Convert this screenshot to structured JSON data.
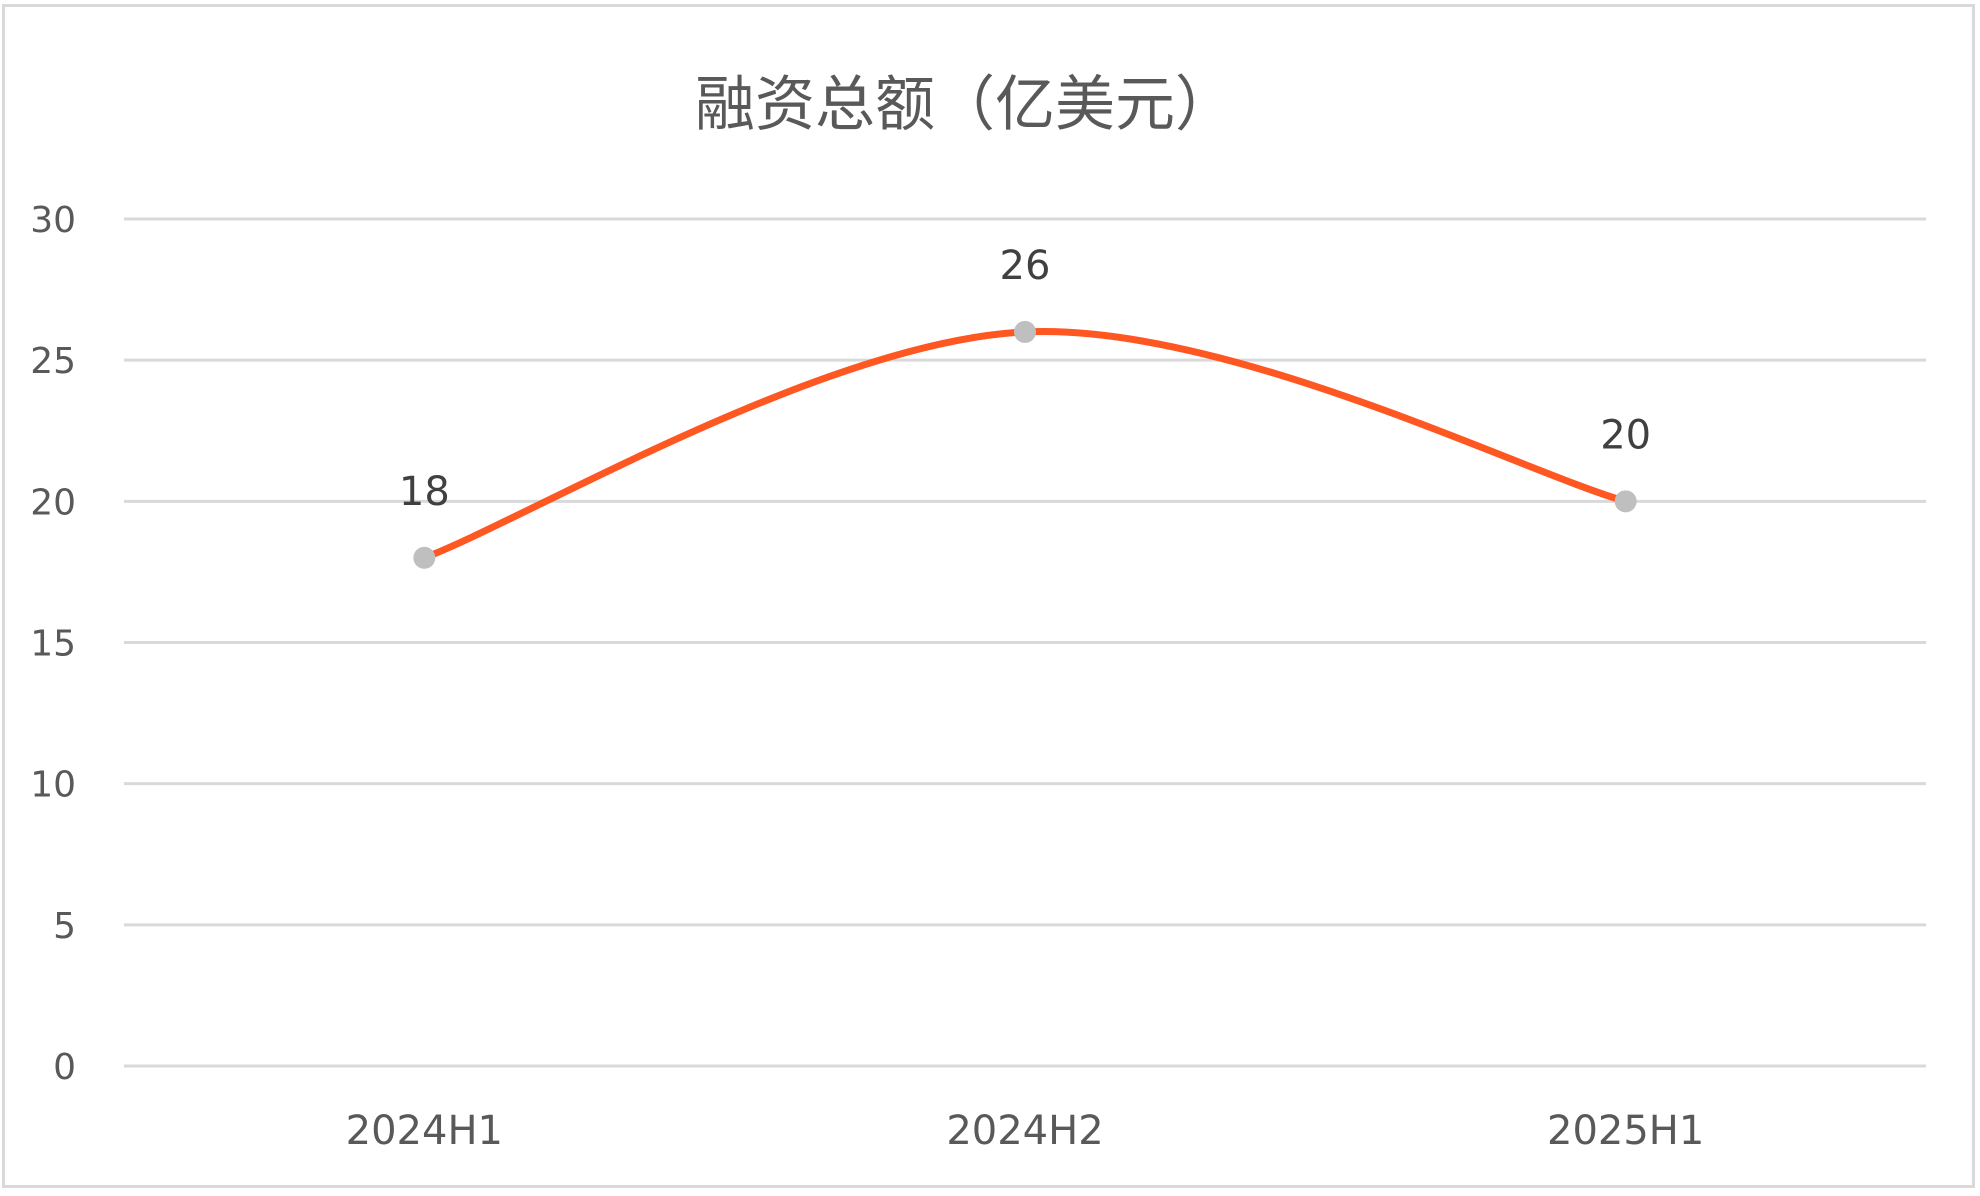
{
  "chart_data": {
    "type": "line",
    "title": "融资总额（亿美元）",
    "categories": [
      "2024H1",
      "2024H2",
      "2025H1"
    ],
    "values": [
      18,
      26,
      20
    ],
    "data_labels": [
      "18",
      "26",
      "20"
    ],
    "ylim": [
      0,
      30
    ],
    "yticks": [
      0,
      5,
      10,
      15,
      20,
      25,
      30
    ],
    "ytick_labels": [
      "0",
      "5",
      "10",
      "15",
      "20",
      "25",
      "30"
    ],
    "xlabel": "",
    "ylabel": "",
    "grid": true,
    "smooth": true,
    "line_color": "#FF5722",
    "marker_color": "#BFBFBF",
    "grid_color": "#D9D9D9",
    "legend": "none"
  }
}
